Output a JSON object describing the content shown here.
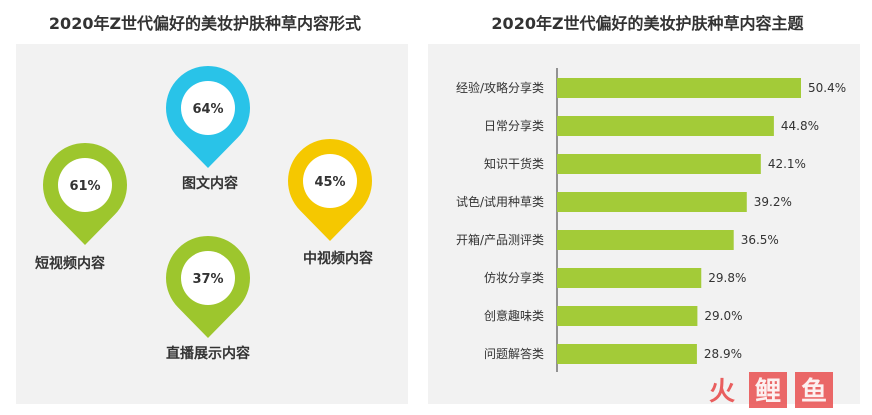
{
  "titles": {
    "left": "2020年Z世代偏好的美妆护肤种草内容形式",
    "right": "2020年Z世代偏好的美妆护肤种草内容主题"
  },
  "colors": {
    "green": "#9dc62d",
    "blue": "#29c3e8",
    "yellow": "#f5c800",
    "bar": "#a3cb38",
    "panel": "#f2f2f2",
    "watermark_red": "#e94f4f"
  },
  "chart_data": [
    {
      "type": "pin-infographic",
      "title": "2020年Z世代偏好的美妆护肤种草内容形式",
      "items": [
        {
          "label": "图文内容",
          "value": 64,
          "display": "64%",
          "color": "blue"
        },
        {
          "label": "短视频内容",
          "value": 61,
          "display": "61%",
          "color": "green"
        },
        {
          "label": "中视频内容",
          "value": 45,
          "display": "45%",
          "color": "yellow"
        },
        {
          "label": "直播展示内容",
          "value": 37,
          "display": "37%",
          "color": "green"
        }
      ]
    },
    {
      "type": "bar",
      "orientation": "horizontal",
      "title": "2020年Z世代偏好的美妆护肤种草内容主题",
      "categories": [
        "经验/攻略分享类",
        "日常分享类",
        "知识干货类",
        "试色/试用种草类",
        "开箱/产品测评类",
        "仿妆分享类",
        "创意趣味类",
        "问题解答类"
      ],
      "values": [
        50.4,
        44.8,
        42.1,
        39.2,
        36.5,
        29.8,
        29.0,
        28.9
      ],
      "value_labels": [
        "50.4%",
        "44.8%",
        "42.1%",
        "39.2%",
        "36.5%",
        "29.8%",
        "29.0%",
        "28.9%"
      ],
      "xlim": [
        0,
        50.4
      ],
      "grid": false
    }
  ],
  "watermark": {
    "chars": [
      "火",
      "鲤",
      "鱼"
    ]
  }
}
